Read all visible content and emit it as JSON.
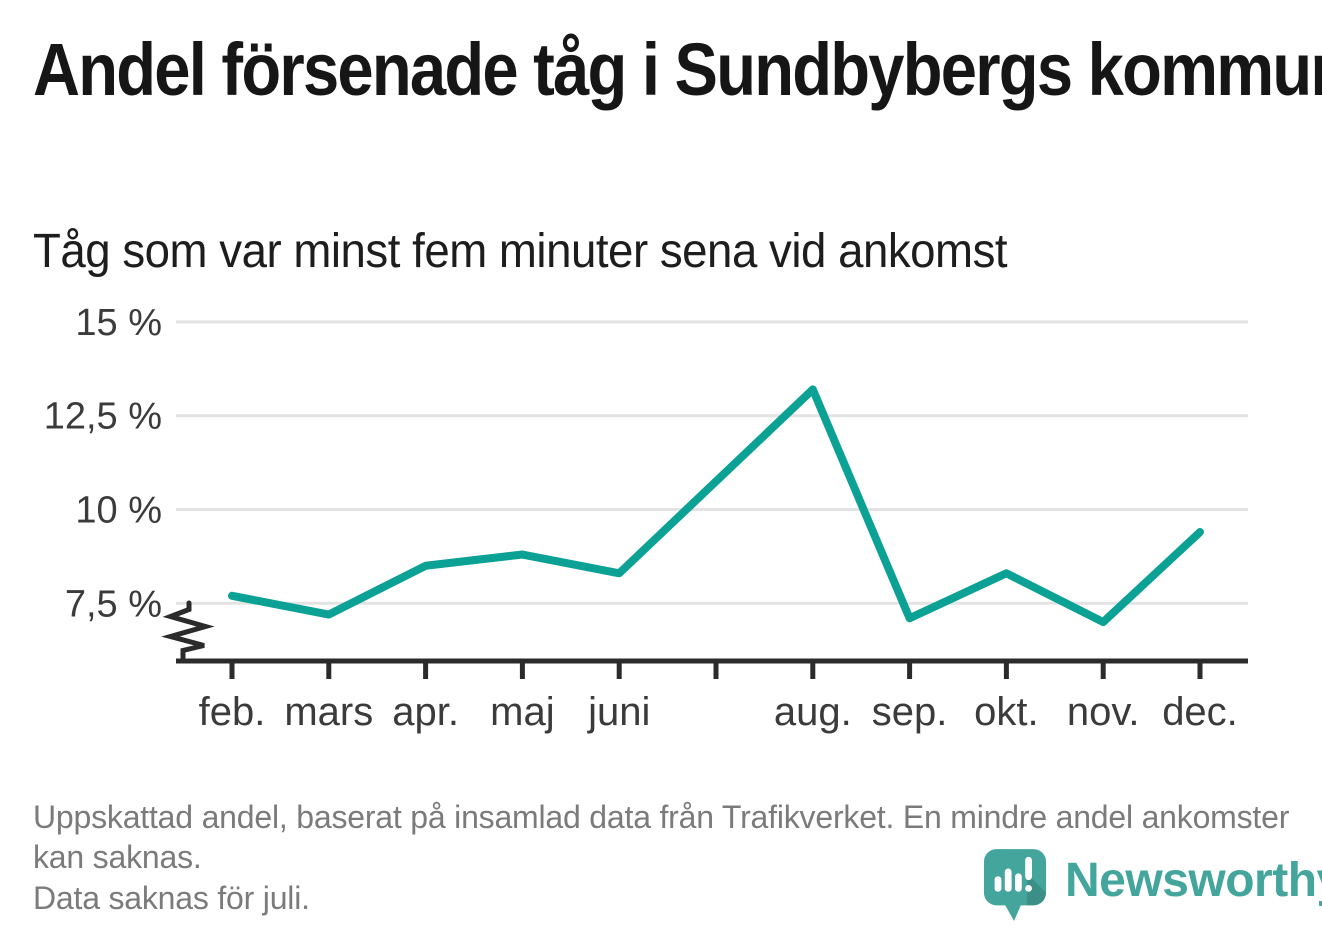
{
  "header": {
    "title": "Andel försenade tåg i Sundbybergs kommun",
    "subtitle": "Tåg som var minst fem minuter sena vid ankomst"
  },
  "chart_data": {
    "type": "line",
    "title": "Andel försenade tåg i Sundbybergs kommun",
    "categories": [
      "feb.",
      "mars",
      "apr.",
      "maj",
      "juni",
      "juli",
      "aug.",
      "sep.",
      "okt.",
      "nov.",
      "dec."
    ],
    "x_tick_labels": [
      "feb.",
      "mars",
      "apr.",
      "maj",
      "juni",
      "",
      "aug.",
      "sep.",
      "okt.",
      "nov.",
      "dec."
    ],
    "values": [
      7.7,
      7.2,
      8.5,
      8.8,
      8.3,
      null,
      13.2,
      7.1,
      8.3,
      7.0,
      9.4
    ],
    "unit": "%",
    "y_ticks": [
      15,
      12.5,
      10,
      7.5
    ],
    "y_tick_labels": [
      "15 %",
      "12,5 %",
      "10 %",
      "7,5 %"
    ],
    "ylim_visible": [
      6,
      15.5
    ],
    "axis_break": true,
    "grid": "horizontal-only",
    "legend": "none",
    "missing_data_note": "Data saknas för juli."
  },
  "footer": {
    "note1": "Uppskattad andel, baserat på insamlad data från Trafikverket. En mindre andel ankomster kan saknas.",
    "note2": "Data saknas för juli.",
    "brand": "Newsworthy"
  },
  "colors": {
    "line": "#0ba295",
    "grid": "#e3e3e3",
    "axis": "#2b2b2b",
    "title_text": "#161616",
    "tick_text": "#3b3b3b",
    "footer_text": "#7b7b7b",
    "logo": "#44a59c",
    "background": "#ffffff"
  }
}
